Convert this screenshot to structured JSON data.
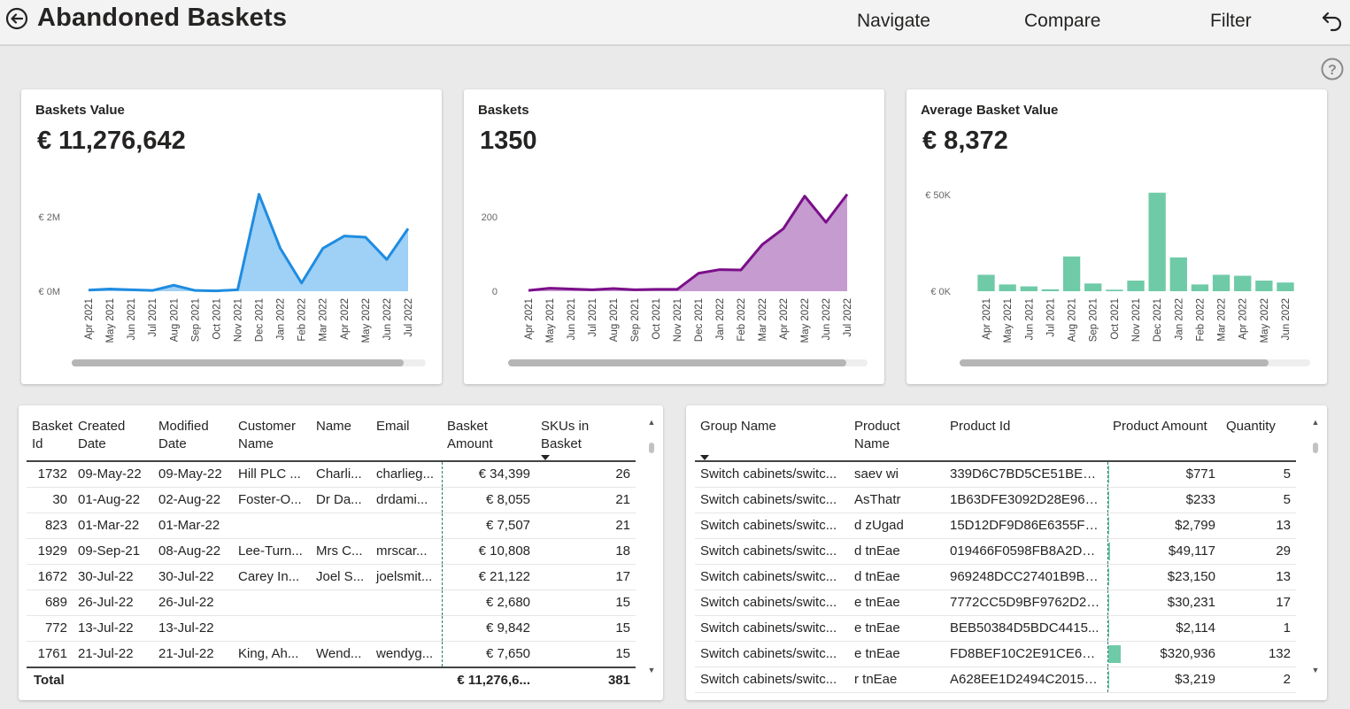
{
  "header": {
    "title": "Abandoned Baskets",
    "nav_label": "Navigate",
    "compare_label": "Compare",
    "filter_label": "Filter"
  },
  "months_full": [
    "Apr 2021",
    "May 2021",
    "Jun 2021",
    "Jul 2021",
    "Aug 2021",
    "Sep 2021",
    "Oct 2021",
    "Nov 2021",
    "Dec 2021",
    "Jan 2022",
    "Feb 2022",
    "Mar 2022",
    "Apr 2022",
    "May 2022",
    "Jun 2022",
    "Jul 2022"
  ],
  "kpis": [
    {
      "label": "Baskets Value",
      "value": "€ 11,276,642"
    },
    {
      "label": "Baskets",
      "value": "1350"
    },
    {
      "label": "Average Basket Value",
      "value": "€ 8,372"
    }
  ],
  "chart_data": [
    {
      "type": "area",
      "title": "Baskets Value",
      "categories": [
        "Apr 2021",
        "May 2021",
        "Jun 2021",
        "Jul 2021",
        "Aug 2021",
        "Sep 2021",
        "Oct 2021",
        "Nov 2021",
        "Dec 2021",
        "Jan 2022",
        "Feb 2022",
        "Mar 2022",
        "Apr 2022",
        "May 2022",
        "Jun 2022",
        "Jul 2022"
      ],
      "values": [
        30000,
        60000,
        40000,
        20000,
        160000,
        20000,
        10000,
        40000,
        2600000,
        1150000,
        220000,
        1150000,
        1480000,
        1450000,
        850000,
        1680000
      ],
      "ylim": [
        0,
        2850000
      ],
      "yticks": [
        {
          "value": 0,
          "label": "€ 0M"
        },
        {
          "value": 2000000,
          "label": "€ 2M"
        }
      ],
      "line_color": "#1f8ce0",
      "fill_color": "#9fd0f5"
    },
    {
      "type": "area",
      "title": "Baskets",
      "categories": [
        "Apr 2021",
        "May 2021",
        "Jun 2021",
        "Jul 2021",
        "Aug 2021",
        "Sep 2021",
        "Oct 2021",
        "Nov 2021",
        "Dec 2021",
        "Jan 2022",
        "Feb 2022",
        "Mar 2022",
        "Apr 2022",
        "May 2022",
        "Jun 2022",
        "Jul 2022"
      ],
      "values": [
        2,
        8,
        6,
        4,
        7,
        4,
        5,
        5,
        48,
        58,
        57,
        125,
        168,
        255,
        185,
        260
      ],
      "ylim": [
        0,
        285
      ],
      "yticks": [
        {
          "value": 0,
          "label": "0"
        },
        {
          "value": 200,
          "label": "200"
        }
      ],
      "line_color": "#7b0f8a",
      "fill_color": "#c69bd0"
    },
    {
      "type": "bar",
      "title": "Average Basket Value",
      "categories": [
        "Apr 2021",
        "May 2021",
        "Jun 2021",
        "Jul 2021",
        "Aug 2021",
        "Sep 2021",
        "Oct 2021",
        "Nov 2021",
        "Dec 2021",
        "Jan 2022",
        "Feb 2022",
        "Mar 2022",
        "Apr 2022",
        "May 2022",
        "Jun 2022"
      ],
      "values": [
        8500,
        3500,
        2500,
        1000,
        18000,
        4000,
        800,
        5500,
        51000,
        17500,
        3500,
        8500,
        8000,
        5500,
        4500
      ],
      "ylim": [
        0,
        55000
      ],
      "yticks": [
        {
          "value": 0,
          "label": "€ 0K"
        },
        {
          "value": 50000,
          "label": "€ 50K"
        }
      ],
      "bar_color": "#6fcaa8"
    }
  ],
  "baskets_table": {
    "columns": [
      {
        "l1": "Basket",
        "l2": "Id"
      },
      {
        "l1": "Created",
        "l2": "Date"
      },
      {
        "l1": "Modified",
        "l2": "Date"
      },
      {
        "l1": "Customer",
        "l2": "Name"
      },
      {
        "l1": "Name",
        "l2": ""
      },
      {
        "l1": "Email",
        "l2": ""
      },
      {
        "l1": "Basket",
        "l2": "Amount"
      },
      {
        "l1": "SKUs in",
        "l2": "Basket"
      }
    ],
    "rows": [
      [
        "1732",
        "09-May-22",
        "09-May-22",
        "Hill PLC ...",
        "Charli...",
        "charlieg...",
        "€ 34,399",
        "26"
      ],
      [
        "30",
        "01-Aug-22",
        "02-Aug-22",
        "Foster-O...",
        "Dr Da...",
        "drdami...",
        "€ 8,055",
        "21"
      ],
      [
        "823",
        "01-Mar-22",
        "01-Mar-22",
        "",
        "",
        "",
        "€ 7,507",
        "21"
      ],
      [
        "1929",
        "09-Sep-21",
        "08-Aug-22",
        "Lee-Turn...",
        "Mrs C...",
        "mrscar...",
        "€ 10,808",
        "18"
      ],
      [
        "1672",
        "30-Jul-22",
        "30-Jul-22",
        "Carey In...",
        "Joel S...",
        "joelsmit...",
        "€ 21,122",
        "17"
      ],
      [
        "689",
        "26-Jul-22",
        "26-Jul-22",
        "",
        "",
        "",
        "€ 2,680",
        "15"
      ],
      [
        "772",
        "13-Jul-22",
        "13-Jul-22",
        "",
        "",
        "",
        "€ 9,842",
        "15"
      ],
      [
        "1761",
        "21-Jul-22",
        "21-Jul-22",
        "King, Ah...",
        "Wend...",
        "wendyg...",
        "€ 7,650",
        "15"
      ]
    ],
    "total": {
      "label": "Total",
      "amount": "€ 11,276,6...",
      "skus": "381"
    }
  },
  "products_table": {
    "columns": [
      {
        "l1": "Group Name",
        "l2": ""
      },
      {
        "l1": "Product",
        "l2": "Name"
      },
      {
        "l1": "Product Id",
        "l2": ""
      },
      {
        "l1": "Product Amount",
        "l2": ""
      },
      {
        "l1": "Quantity",
        "l2": ""
      }
    ],
    "rows": [
      {
        "group": "Switch cabinets/switc...",
        "name": " saev wi",
        "id": "339D6C7BD5CE51BED...",
        "amount": "$771",
        "qty": "5",
        "share": 0.002
      },
      {
        "group": "Switch cabinets/switc...",
        "name": "AsThatr",
        "id": "1B63DFE3092D28E96E...",
        "amount": "$233",
        "qty": "5",
        "share": 0.001
      },
      {
        "group": "Switch cabinets/switc...",
        "name": "d  zUgad",
        "id": "15D12DF9D86E6355F5...",
        "amount": "$2,799",
        "qty": "13",
        "share": 0.009
      },
      {
        "group": "Switch cabinets/switc...",
        "name": "d tnEae",
        "id": "019466F0598FB8A2DD...",
        "amount": "$49,117",
        "qty": "29",
        "share": 0.15
      },
      {
        "group": "Switch cabinets/switc...",
        "name": "d tnEae",
        "id": "969248DCC27401B9BC...",
        "amount": "$23,150",
        "qty": "13",
        "share": 0.072
      },
      {
        "group": "Switch cabinets/switc...",
        "name": "e tnEae",
        "id": "7772CC5D9BF9762D28...",
        "amount": "$30,231",
        "qty": "17",
        "share": 0.094
      },
      {
        "group": "Switch cabinets/switc...",
        "name": "e tnEae",
        "id": "BEB50384D5BDC4415...",
        "amount": "$2,114",
        "qty": "1",
        "share": 0.007
      },
      {
        "group": "Switch cabinets/switc...",
        "name": "e tnEae",
        "id": "FD8BEF10C2E91CE63E...",
        "amount": "$320,936",
        "qty": "132",
        "share": 1.0
      },
      {
        "group": "Switch cabinets/switc...",
        "name": "r tnEae",
        "id": "A628EE1D2494C2015C...",
        "amount": "$3,219",
        "qty": "2",
        "share": 0.01
      }
    ]
  }
}
